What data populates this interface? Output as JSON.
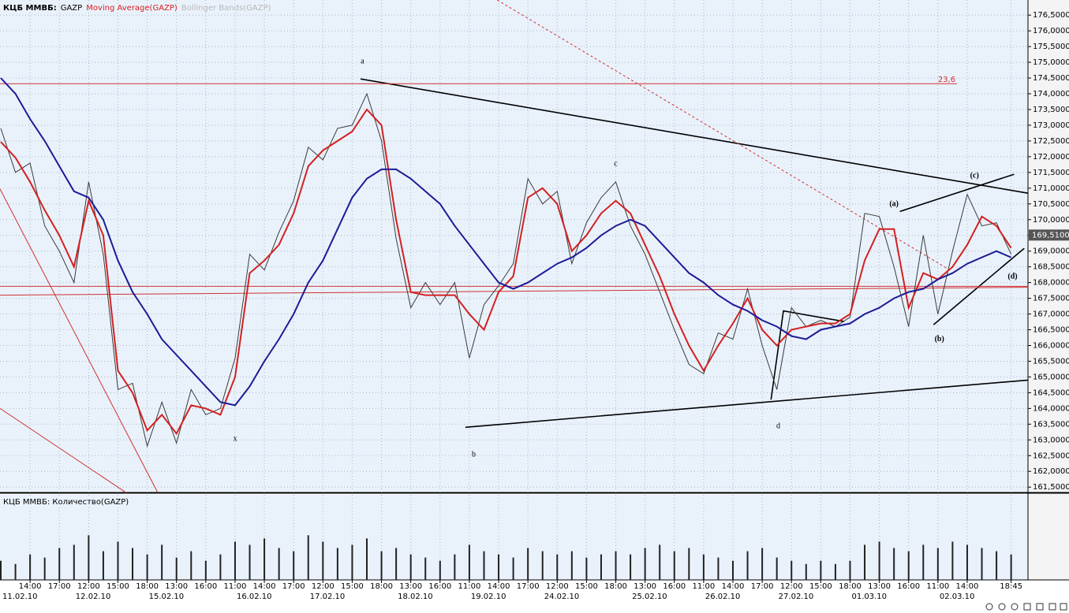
{
  "chart_data": [
    {
      "type": "line",
      "panel_title": "КЦБ ММВБ:",
      "categories": [
        null,
        null,
        "14:00",
        null,
        "17:00",
        null,
        "12:00",
        null,
        "15:00",
        null,
        "18:00",
        null,
        "13:00",
        null,
        "16:00",
        null,
        "11:00",
        null,
        "14:00",
        null,
        "17:00",
        null,
        "12:00",
        null,
        "15:00",
        null,
        "18:00",
        null,
        "13:00",
        null,
        "16:00",
        null,
        "11:00",
        null,
        "14:00",
        null,
        "17:00",
        null,
        "12:00",
        null,
        "15:00",
        null,
        "18:00",
        null,
        "13:00",
        null,
        "16:00",
        null,
        "11:00",
        null,
        "14:00",
        null,
        "17:00",
        null,
        "12:00",
        null,
        "15:00",
        null,
        "18:00",
        null,
        "13:00",
        null,
        "16:00",
        null,
        "11:00",
        null,
        "14:00",
        null,
        null,
        "18:45"
      ],
      "dates": [
        {
          "x": 0,
          "label": "11.02.10"
        },
        {
          "x": 5,
          "label": "12.02.10"
        },
        {
          "x": 10,
          "label": "15.02.10"
        },
        {
          "x": 16,
          "label": "16.02.10"
        },
        {
          "x": 21,
          "label": "17.02.10"
        },
        {
          "x": 27,
          "label": "18.02.10"
        },
        {
          "x": 32,
          "label": "19.02.10"
        },
        {
          "x": 37,
          "label": "24.02.10"
        },
        {
          "x": 43,
          "label": "25.02.10"
        },
        {
          "x": 48,
          "label": "26.02.10"
        },
        {
          "x": 53,
          "label": "27.02.10"
        },
        {
          "x": 58,
          "label": "01.03.10"
        },
        {
          "x": 64,
          "label": "02.03.10"
        }
      ],
      "series": [
        {
          "name": "GAZP",
          "color": "#3a3a3a",
          "values": [
            172.9,
            171.5,
            171.8,
            169.8,
            169.0,
            168.0,
            171.2,
            168.9,
            164.6,
            164.8,
            162.8,
            164.2,
            162.9,
            164.6,
            163.8,
            164.0,
            165.6,
            168.9,
            168.4,
            169.6,
            170.6,
            172.3,
            171.9,
            172.9,
            173.0,
            174.0,
            172.5,
            169.4,
            167.2,
            168.0,
            167.3,
            168.0,
            165.6,
            167.3,
            167.9,
            168.6,
            171.3,
            170.5,
            170.9,
            168.6,
            169.9,
            170.7,
            171.2,
            169.8,
            168.9,
            167.7,
            166.5,
            165.4,
            165.1,
            166.4,
            166.2,
            167.8,
            166.0,
            164.6,
            167.2,
            166.6,
            166.8,
            166.6,
            166.9,
            170.2,
            170.1,
            168.5,
            166.6,
            169.5,
            167.0,
            169.0,
            170.8,
            169.8,
            169.9,
            168.9
          ]
        },
        {
          "name": "Moving Average(GAZP)",
          "color": "#d42020",
          "values": [
            172.47,
            171.97,
            171.2,
            170.3,
            169.5,
            168.5,
            170.6,
            169.5,
            165.2,
            164.5,
            163.3,
            163.8,
            163.2,
            164.1,
            164.0,
            163.8,
            165.0,
            168.3,
            168.7,
            169.2,
            170.2,
            171.7,
            172.2,
            172.5,
            172.8,
            173.5,
            173.0,
            170.0,
            167.7,
            167.6,
            167.6,
            167.6,
            167.0,
            166.5,
            167.7,
            168.2,
            170.7,
            171.0,
            170.5,
            169.0,
            169.5,
            170.2,
            170.6,
            170.2,
            169.2,
            168.2,
            167.0,
            166.0,
            165.2,
            166.0,
            166.7,
            167.5,
            166.5,
            166.0,
            166.5,
            166.6,
            166.7,
            166.7,
            167.0,
            168.7,
            169.7,
            169.7,
            167.2,
            168.3,
            168.1,
            168.5,
            169.2,
            170.1,
            169.8,
            169.1
          ]
        },
        {
          "color": "#1c1c96",
          "values": [
            174.5,
            174.0,
            173.2,
            172.5,
            171.7,
            170.9,
            170.7,
            170.0,
            168.7,
            167.7,
            167.0,
            166.2,
            165.7,
            165.2,
            164.7,
            164.2,
            164.1,
            164.7,
            165.5,
            166.2,
            167.0,
            168.0,
            168.7,
            169.7,
            170.7,
            171.3,
            171.6,
            171.6,
            171.3,
            170.9,
            170.5,
            169.8,
            169.2,
            168.6,
            168.0,
            167.8,
            168.0,
            168.3,
            168.6,
            168.8,
            169.1,
            169.5,
            169.8,
            170.0,
            169.8,
            169.3,
            168.8,
            168.3,
            168.0,
            167.6,
            167.3,
            167.1,
            166.8,
            166.6,
            166.3,
            166.2,
            166.5,
            166.6,
            166.7,
            167.0,
            167.2,
            167.5,
            167.7,
            167.8,
            168.1,
            168.3,
            168.6,
            168.8,
            169.0,
            168.8
          ]
        },
        {
          "name": "Bollinger Bands(GAZP)",
          "color": "#b8b8b8"
        }
      ],
      "ylim": [
        161.33,
        176.98
      ],
      "yticks": [
        {
          "value": 161.5,
          "label": "161,5000"
        },
        {
          "value": 162,
          "label": "162,0000"
        },
        {
          "value": 162.5,
          "label": "162,5000"
        },
        {
          "value": 163,
          "label": "163,0000"
        },
        {
          "value": 163.5,
          "label": "163,5000"
        },
        {
          "value": 164,
          "label": "164,0000"
        },
        {
          "value": 164.5,
          "label": "164,5000"
        },
        {
          "value": 165,
          "label": "165,0000"
        },
        {
          "value": 165.5,
          "label": "165,5000"
        },
        {
          "value": 166,
          "label": "166,0000"
        },
        {
          "value": 166.5,
          "label": "166,5000"
        },
        {
          "value": 167,
          "label": "167,0000"
        },
        {
          "value": 167.5,
          "label": "167,5000"
        },
        {
          "value": 168,
          "label": "168,0000"
        },
        {
          "value": 168.5,
          "label": "168,5000"
        },
        {
          "value": 169,
          "label": "169,0000"
        },
        {
          "value": 169.5,
          "label": "169,5000"
        },
        {
          "value": 170,
          "label": "170,0000"
        },
        {
          "value": 170.5,
          "label": "170,5000"
        },
        {
          "value": 171,
          "label": "171,0000"
        },
        {
          "value": 171.5,
          "label": "171,5000"
        },
        {
          "value": 172,
          "label": "172,0000"
        },
        {
          "value": 172.5,
          "label": "172,5000"
        },
        {
          "value": 173,
          "label": "173,0000"
        },
        {
          "value": 173.5,
          "label": "173,5000"
        },
        {
          "value": 174,
          "label": "174,0000"
        },
        {
          "value": 174.5,
          "label": "174,5000"
        },
        {
          "value": 175,
          "label": "175,0000"
        },
        {
          "value": 175.5,
          "label": "175,5000"
        },
        {
          "value": 176,
          "label": "176,0000"
        },
        {
          "value": 176.5,
          "label": "176,5000"
        }
      ],
      "grid": true,
      "last_price": {
        "value": 169.51,
        "label": "169,5100"
      },
      "annotations": [
        {
          "text": "a",
          "x": 24.7,
          "y": 175.02
        },
        {
          "text": "x",
          "x": 16,
          "y": 163.03
        },
        {
          "text": "b",
          "x": 32.3,
          "y": 162.53
        },
        {
          "text": "c",
          "x": 42,
          "y": 171.77
        },
        {
          "text": "d",
          "x": 53.1,
          "y": 163.43
        },
        {
          "text": "(a)",
          "x": 61,
          "y": 170.49
        },
        {
          "text": "(b)",
          "x": 64.1,
          "y": 166.2
        },
        {
          "text": "(c)",
          "x": 66.5,
          "y": 171.39
        },
        {
          "text": "(d)",
          "x": 69.1,
          "y": 168.19
        },
        {
          "text": "23,6",
          "x": 64.6,
          "y": 174.45,
          "color": "#d03030"
        }
      ],
      "lines": [
        {
          "x": [
            24.57,
            70.15
          ],
          "y": [
            174.47,
            170.84
          ],
          "color": "#000000"
        },
        {
          "x": [
            31.73,
            70.15
          ],
          "y": [
            163.4,
            164.9
          ],
          "color": "#000000"
        },
        {
          "x": [
            52.6,
            53.45,
            57.6
          ],
          "y": [
            164.28,
            167.1,
            166.76
          ],
          "color": "#000000"
        },
        {
          "x": [
            63.7,
            69.9
          ],
          "y": [
            166.66,
            169.09
          ],
          "color": "#000000"
        },
        {
          "x": [
            61.4,
            69.2
          ],
          "y": [
            170.26,
            171.44
          ],
          "color": "#000000"
        },
        {
          "x": [
            -0.05,
            65.3
          ],
          "y": [
            174.32,
            174.32
          ],
          "color": "#d03030"
        },
        {
          "x": [
            -0.05,
            70.15
          ],
          "y": [
            167.88,
            167.88
          ],
          "color": "#d03030"
        },
        {
          "x": [
            -0.05,
            70.15
          ],
          "y": [
            167.6,
            167.85
          ],
          "color": "#d03030"
        },
        {
          "x": [
            -0.05,
            10.72
          ],
          "y": [
            170.97,
            161.32
          ],
          "color": "#d03030"
        },
        {
          "x": [
            -0.05,
            8.57
          ],
          "y": [
            164.0,
            161.32
          ],
          "color": "#d03030"
        },
        {
          "x": [
            33.9,
            64.6
          ],
          "y": [
            176.98,
            168.46
          ],
          "color": "#d03030",
          "dashed": true
        }
      ]
    },
    {
      "type": "bar",
      "title": "КЦБ ММВБ: Количество(GAZP)",
      "color": "#222222",
      "values": [
        30,
        25,
        40,
        35,
        50,
        55,
        70,
        45,
        60,
        50,
        40,
        55,
        35,
        45,
        30,
        40,
        60,
        55,
        65,
        50,
        45,
        70,
        60,
        50,
        55,
        65,
        45,
        50,
        40,
        35,
        30,
        40,
        55,
        45,
        40,
        35,
        50,
        45,
        40,
        45,
        35,
        40,
        45,
        40,
        50,
        55,
        45,
        50,
        40,
        35,
        30,
        45,
        50,
        35,
        30,
        25,
        30,
        25,
        30,
        55,
        60,
        50,
        45,
        55,
        50,
        60,
        55,
        50,
        45,
        40
      ],
      "ylim": [
        0,
        100
      ]
    }
  ]
}
